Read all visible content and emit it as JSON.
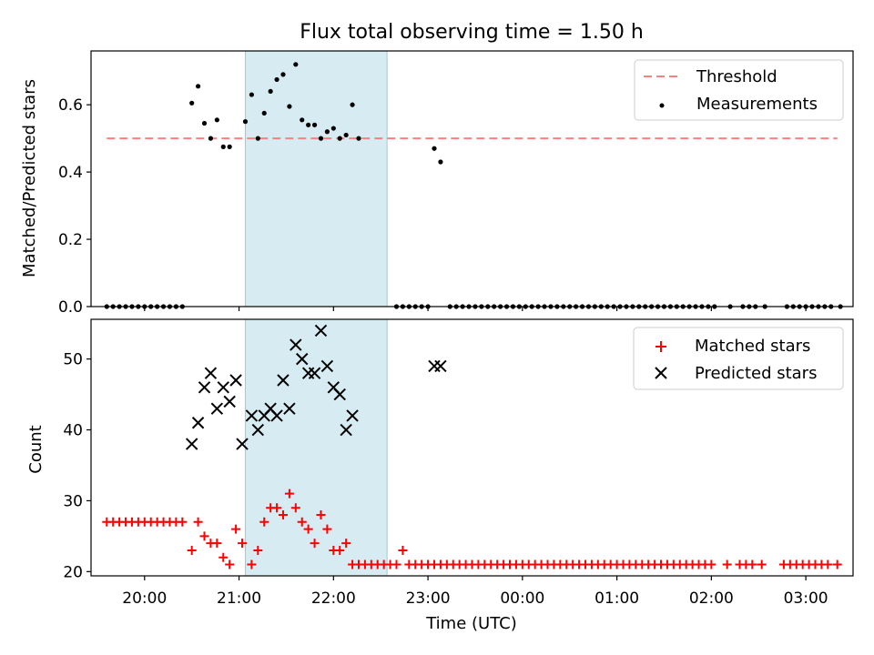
{
  "title": "Flux total observing time = 1.50 h",
  "chart_data": [
    {
      "type": "scatter",
      "ylabel": "Matched/Predicted stars",
      "ylim": [
        0,
        0.76
      ],
      "yticks": [
        "0.0",
        "0.2",
        "0.4",
        "0.6"
      ],
      "ytick_values": [
        0,
        0.2,
        0.4,
        0.6
      ],
      "x_is_time": true,
      "highlight_span": {
        "start": "21:04",
        "end": "22:34",
        "color": "#add8e6"
      },
      "threshold": {
        "name": "Threshold",
        "value": 0.5,
        "x_start": "19:36",
        "x_end": "03:20",
        "color": "#ff7f7f"
      },
      "legend": {
        "position": "top-right",
        "entries": [
          "Threshold",
          "Measurements"
        ]
      },
      "series": [
        {
          "name": "Measurements",
          "color": "#000000",
          "points": [
            [
              "19:36",
              0
            ],
            [
              "19:40",
              0
            ],
            [
              "19:44",
              0
            ],
            [
              "19:48",
              0
            ],
            [
              "19:52",
              0
            ],
            [
              "19:56",
              0
            ],
            [
              "20:00",
              0
            ],
            [
              "20:04",
              0
            ],
            [
              "20:08",
              0
            ],
            [
              "20:12",
              0
            ],
            [
              "20:16",
              0
            ],
            [
              "20:20",
              0
            ],
            [
              "20:24",
              0
            ],
            [
              "20:30",
              0.605
            ],
            [
              "20:34",
              0.655
            ],
            [
              "20:38",
              0.545
            ],
            [
              "20:42",
              0.5
            ],
            [
              "20:46",
              0.555
            ],
            [
              "20:50",
              0.475
            ],
            [
              "20:54",
              0.475
            ],
            [
              "21:04",
              0.55
            ],
            [
              "21:08",
              0.63
            ],
            [
              "21:12",
              0.5
            ],
            [
              "21:16",
              0.575
            ],
            [
              "21:20",
              0.64
            ],
            [
              "21:24",
              0.675
            ],
            [
              "21:28",
              0.69
            ],
            [
              "21:32",
              0.595
            ],
            [
              "21:36",
              0.72
            ],
            [
              "21:40",
              0.555
            ],
            [
              "21:44",
              0.54
            ],
            [
              "21:48",
              0.54
            ],
            [
              "21:52",
              0.5
            ],
            [
              "21:56",
              0.52
            ],
            [
              "22:00",
              0.53
            ],
            [
              "22:04",
              0.5
            ],
            [
              "22:08",
              0.51
            ],
            [
              "22:12",
              0.6
            ],
            [
              "22:16",
              0.5
            ],
            [
              "22:40",
              0
            ],
            [
              "22:44",
              0
            ],
            [
              "22:48",
              0
            ],
            [
              "22:52",
              0
            ],
            [
              "22:56",
              0
            ],
            [
              "23:00",
              0
            ],
            [
              "23:04",
              0.47
            ],
            [
              "23:08",
              0.43
            ],
            [
              "23:14",
              0
            ],
            [
              "23:18",
              0
            ],
            [
              "23:22",
              0
            ],
            [
              "23:26",
              0
            ],
            [
              "23:30",
              0
            ],
            [
              "23:34",
              0
            ],
            [
              "23:38",
              0
            ],
            [
              "23:42",
              0
            ],
            [
              "23:46",
              0
            ],
            [
              "23:50",
              0
            ],
            [
              "23:54",
              0
            ],
            [
              "23:58",
              0
            ],
            [
              "00:02",
              0
            ],
            [
              "00:06",
              0
            ],
            [
              "00:10",
              0
            ],
            [
              "00:14",
              0
            ],
            [
              "00:18",
              0
            ],
            [
              "00:22",
              0
            ],
            [
              "00:26",
              0
            ],
            [
              "00:30",
              0
            ],
            [
              "00:34",
              0
            ],
            [
              "00:38",
              0
            ],
            [
              "00:42",
              0
            ],
            [
              "00:46",
              0
            ],
            [
              "00:50",
              0
            ],
            [
              "00:54",
              0
            ],
            [
              "00:58",
              0
            ],
            [
              "01:02",
              0
            ],
            [
              "01:06",
              0
            ],
            [
              "01:10",
              0
            ],
            [
              "01:14",
              0
            ],
            [
              "01:18",
              0
            ],
            [
              "01:22",
              0
            ],
            [
              "01:26",
              0
            ],
            [
              "01:30",
              0
            ],
            [
              "01:34",
              0
            ],
            [
              "01:38",
              0
            ],
            [
              "01:42",
              0
            ],
            [
              "01:46",
              0
            ],
            [
              "01:50",
              0
            ],
            [
              "01:54",
              0
            ],
            [
              "01:58",
              0
            ],
            [
              "02:02",
              0
            ],
            [
              "02:12",
              0
            ],
            [
              "02:20",
              0
            ],
            [
              "02:24",
              0
            ],
            [
              "02:28",
              0
            ],
            [
              "02:34",
              0
            ],
            [
              "02:48",
              0
            ],
            [
              "02:52",
              0
            ],
            [
              "02:56",
              0
            ],
            [
              "03:00",
              0
            ],
            [
              "03:04",
              0
            ],
            [
              "03:08",
              0
            ],
            [
              "03:12",
              0
            ],
            [
              "03:16",
              0
            ],
            [
              "03:22",
              0
            ]
          ]
        }
      ]
    },
    {
      "type": "scatter",
      "xlabel": "Time (UTC)",
      "ylabel": "Count",
      "ylim": [
        19.4,
        55.6
      ],
      "yticks": [
        "20",
        "30",
        "40",
        "50"
      ],
      "ytick_values": [
        20,
        30,
        40,
        50
      ],
      "xticks": [
        "20:00",
        "21:00",
        "22:00",
        "23:00",
        "00:00",
        "01:00",
        "02:00",
        "03:00"
      ],
      "x_is_time": true,
      "highlight_span": {
        "start": "21:04",
        "end": "22:34",
        "color": "#add8e6"
      },
      "legend": {
        "position": "top-right",
        "entries": [
          "Matched stars",
          "Predicted stars"
        ]
      },
      "series": [
        {
          "name": "Matched stars",
          "marker": "plus",
          "color": "#ff0000",
          "points": [
            [
              "19:36",
              27
            ],
            [
              "19:40",
              27
            ],
            [
              "19:44",
              27
            ],
            [
              "19:48",
              27
            ],
            [
              "19:52",
              27
            ],
            [
              "19:56",
              27
            ],
            [
              "20:00",
              27
            ],
            [
              "20:04",
              27
            ],
            [
              "20:08",
              27
            ],
            [
              "20:12",
              27
            ],
            [
              "20:16",
              27
            ],
            [
              "20:20",
              27
            ],
            [
              "20:24",
              27
            ],
            [
              "20:30",
              23
            ],
            [
              "20:34",
              27
            ],
            [
              "20:38",
              25
            ],
            [
              "20:42",
              24
            ],
            [
              "20:46",
              24
            ],
            [
              "20:50",
              22
            ],
            [
              "20:54",
              21
            ],
            [
              "20:58",
              26
            ],
            [
              "21:02",
              24
            ],
            [
              "21:08",
              21
            ],
            [
              "21:12",
              23
            ],
            [
              "21:16",
              27
            ],
            [
              "21:20",
              29
            ],
            [
              "21:24",
              29
            ],
            [
              "21:28",
              28
            ],
            [
              "21:32",
              31
            ],
            [
              "21:36",
              29
            ],
            [
              "21:40",
              27
            ],
            [
              "21:44",
              26
            ],
            [
              "21:48",
              24
            ],
            [
              "21:52",
              28
            ],
            [
              "21:56",
              26
            ],
            [
              "22:00",
              23
            ],
            [
              "22:04",
              23
            ],
            [
              "22:08",
              24
            ],
            [
              "22:12",
              21
            ],
            [
              "22:16",
              21
            ],
            [
              "22:20",
              21
            ],
            [
              "22:24",
              21
            ],
            [
              "22:28",
              21
            ],
            [
              "22:32",
              21
            ],
            [
              "22:36",
              21
            ],
            [
              "22:40",
              21
            ],
            [
              "22:44",
              23
            ],
            [
              "22:48",
              21
            ],
            [
              "22:52",
              21
            ],
            [
              "22:56",
              21
            ],
            [
              "23:00",
              21
            ],
            [
              "23:04",
              21
            ],
            [
              "23:08",
              21
            ],
            [
              "23:12",
              21
            ],
            [
              "23:16",
              21
            ],
            [
              "23:20",
              21
            ],
            [
              "23:24",
              21
            ],
            [
              "23:28",
              21
            ],
            [
              "23:32",
              21
            ],
            [
              "23:36",
              21
            ],
            [
              "23:40",
              21
            ],
            [
              "23:44",
              21
            ],
            [
              "23:48",
              21
            ],
            [
              "23:52",
              21
            ],
            [
              "23:56",
              21
            ],
            [
              "00:00",
              21
            ],
            [
              "00:04",
              21
            ],
            [
              "00:08",
              21
            ],
            [
              "00:12",
              21
            ],
            [
              "00:16",
              21
            ],
            [
              "00:20",
              21
            ],
            [
              "00:24",
              21
            ],
            [
              "00:28",
              21
            ],
            [
              "00:32",
              21
            ],
            [
              "00:36",
              21
            ],
            [
              "00:40",
              21
            ],
            [
              "00:44",
              21
            ],
            [
              "00:48",
              21
            ],
            [
              "00:52",
              21
            ],
            [
              "00:56",
              21
            ],
            [
              "01:00",
              21
            ],
            [
              "01:04",
              21
            ],
            [
              "01:08",
              21
            ],
            [
              "01:12",
              21
            ],
            [
              "01:16",
              21
            ],
            [
              "01:20",
              21
            ],
            [
              "01:24",
              21
            ],
            [
              "01:28",
              21
            ],
            [
              "01:32",
              21
            ],
            [
              "01:36",
              21
            ],
            [
              "01:40",
              21
            ],
            [
              "01:44",
              21
            ],
            [
              "01:48",
              21
            ],
            [
              "01:52",
              21
            ],
            [
              "01:56",
              21
            ],
            [
              "02:00",
              21
            ],
            [
              "02:10",
              21
            ],
            [
              "02:18",
              21
            ],
            [
              "02:22",
              21
            ],
            [
              "02:26",
              21
            ],
            [
              "02:32",
              21
            ],
            [
              "02:46",
              21
            ],
            [
              "02:50",
              21
            ],
            [
              "02:54",
              21
            ],
            [
              "02:58",
              21
            ],
            [
              "03:02",
              21
            ],
            [
              "03:06",
              21
            ],
            [
              "03:10",
              21
            ],
            [
              "03:14",
              21
            ],
            [
              "03:20",
              21
            ]
          ]
        },
        {
          "name": "Predicted stars",
          "marker": "x",
          "color": "#000000",
          "points": [
            [
              "20:30",
              38
            ],
            [
              "20:34",
              41
            ],
            [
              "20:38",
              46
            ],
            [
              "20:42",
              48
            ],
            [
              "20:46",
              43
            ],
            [
              "20:50",
              46
            ],
            [
              "20:54",
              44
            ],
            [
              "20:58",
              47
            ],
            [
              "21:02",
              38
            ],
            [
              "21:08",
              42
            ],
            [
              "21:12",
              40
            ],
            [
              "21:16",
              42
            ],
            [
              "21:20",
              43
            ],
            [
              "21:24",
              42
            ],
            [
              "21:28",
              47
            ],
            [
              "21:32",
              43
            ],
            [
              "21:36",
              52
            ],
            [
              "21:40",
              50
            ],
            [
              "21:44",
              48
            ],
            [
              "21:48",
              48
            ],
            [
              "21:52",
              54
            ],
            [
              "21:56",
              49
            ],
            [
              "22:00",
              46
            ],
            [
              "22:04",
              45
            ],
            [
              "22:08",
              40
            ],
            [
              "22:12",
              42
            ],
            [
              "23:04",
              49
            ],
            [
              "23:08",
              49
            ]
          ]
        }
      ]
    }
  ]
}
